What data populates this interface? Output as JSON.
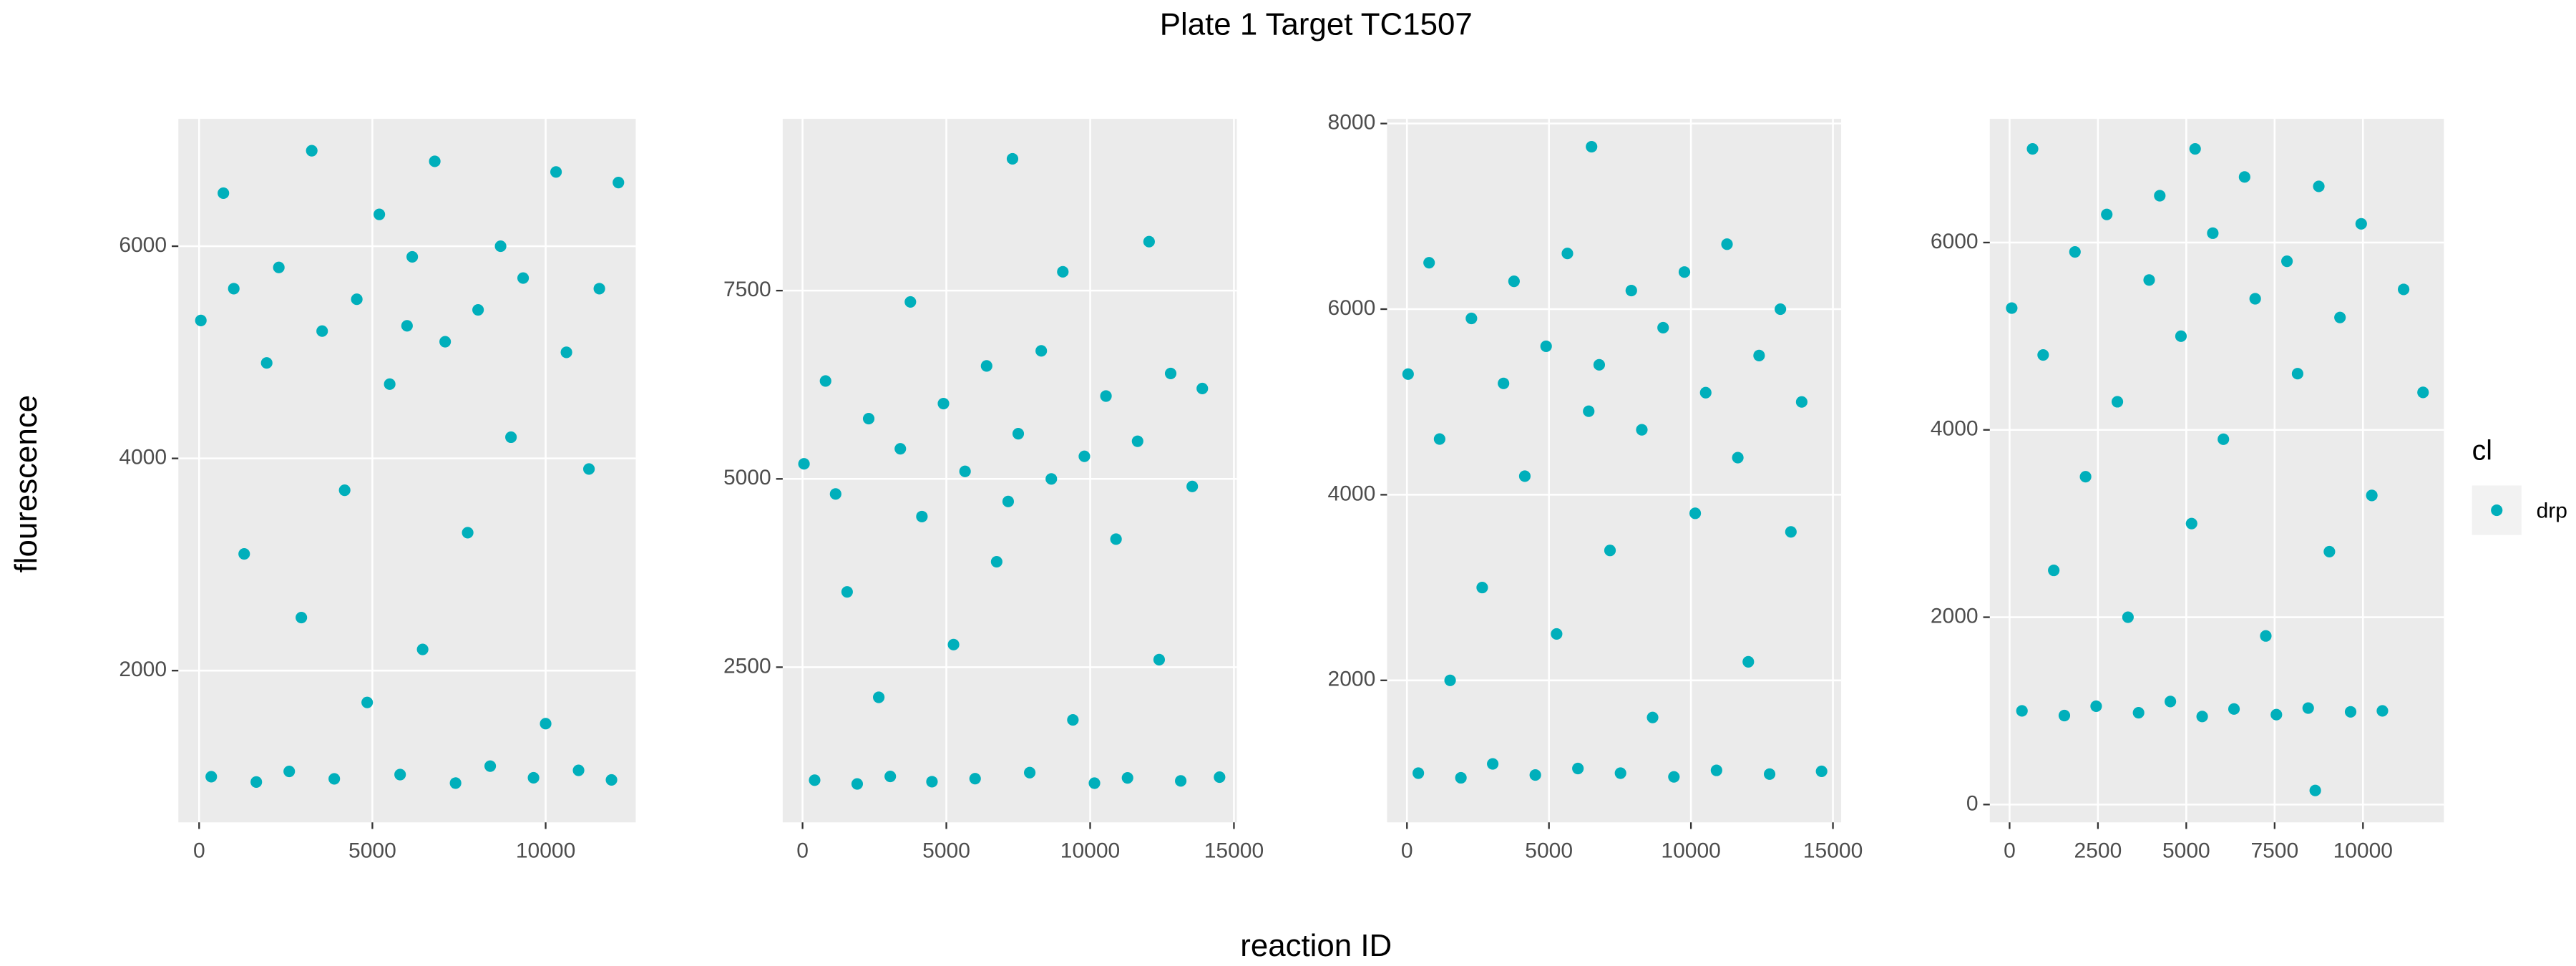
{
  "title": "Plate 1 Target TC1507",
  "x_label": "reaction ID",
  "y_label": "flourescence",
  "legend_title": "cl",
  "chart_data": [
    {
      "type": "scatter",
      "xlim": [
        -600,
        12600
      ],
      "ylim": [
        570,
        7200
      ],
      "xticks": [
        0,
        5000,
        10000
      ],
      "yticks": [
        2000,
        4000,
        6000
      ],
      "series": [
        {
          "name": "drp",
          "color": "#00AFBB",
          "x": [
            50,
            350,
            700,
            1000,
            1300,
            1650,
            1950,
            2300,
            2600,
            2950,
            3250,
            3550,
            3900,
            4200,
            4550,
            4850,
            5200,
            5500,
            5800,
            6150,
            6450,
            6800,
            7100,
            7400,
            7750,
            8050,
            8400,
            8700,
            9000,
            9350,
            9650,
            10000,
            10300,
            10600,
            10950,
            11250,
            11550,
            11900,
            12100,
            6000
          ],
          "values": [
            5300,
            1000,
            6500,
            5600,
            3100,
            950,
            4900,
            5800,
            1050,
            2500,
            6900,
            5200,
            980,
            3700,
            5500,
            1700,
            6300,
            4700,
            1020,
            5900,
            2200,
            6800,
            5100,
            940,
            3300,
            5400,
            1100,
            6000,
            4200,
            5700,
            990,
            1500,
            6700,
            5000,
            1060,
            3900,
            5600,
            970,
            6600,
            5250
          ]
        }
      ]
    },
    {
      "type": "scatter",
      "xlim": [
        -690,
        15100
      ],
      "ylim": [
        440,
        9780
      ],
      "xticks": [
        0,
        5000,
        10000,
        15000
      ],
      "yticks": [
        2500,
        5000,
        7500
      ],
      "series": [
        {
          "name": "drp",
          "color": "#00AFBB",
          "x": [
            50,
            420,
            800,
            1150,
            1550,
            1900,
            2300,
            2650,
            3050,
            3400,
            3750,
            4150,
            4500,
            4900,
            5250,
            5650,
            6000,
            6400,
            6750,
            7150,
            7300,
            7500,
            7900,
            8300,
            8650,
            9050,
            9400,
            9800,
            10150,
            10550,
            10900,
            11300,
            11650,
            12050,
            12400,
            12800,
            13150,
            13550,
            13900,
            14500
          ],
          "values": [
            5200,
            1000,
            6300,
            4800,
            3500,
            950,
            5800,
            2100,
            1050,
            5400,
            7350,
            4500,
            980,
            6000,
            2800,
            5100,
            1020,
            6500,
            3900,
            4700,
            9250,
            5600,
            1100,
            6700,
            5000,
            7750,
            1800,
            5300,
            960,
            6100,
            4200,
            1030,
            5500,
            8150,
            2600,
            6400,
            990,
            4900,
            6200,
            1040
          ]
        }
      ]
    },
    {
      "type": "scatter",
      "xlim": [
        -700,
        15290
      ],
      "ylim": [
        470,
        8050
      ],
      "xticks": [
        0,
        5000,
        10000,
        15000
      ],
      "yticks": [
        2000,
        4000,
        6000,
        8000
      ],
      "series": [
        {
          "name": "drp",
          "color": "#00AFBB",
          "x": [
            40,
            400,
            780,
            1150,
            1520,
            1900,
            2270,
            2650,
            3020,
            3400,
            3770,
            4150,
            4520,
            4900,
            5270,
            5650,
            6020,
            6400,
            6500,
            6770,
            7150,
            7520,
            7900,
            8270,
            8650,
            9020,
            9400,
            9770,
            10150,
            10520,
            10900,
            11270,
            11650,
            12020,
            12400,
            12770,
            13150,
            13520,
            13900,
            14600
          ],
          "values": [
            5300,
            1000,
            6500,
            4600,
            2000,
            950,
            5900,
            3000,
            1100,
            5200,
            6300,
            4200,
            980,
            5600,
            2500,
            6600,
            1050,
            4900,
            7750,
            5400,
            3400,
            1000,
            6200,
            4700,
            1600,
            5800,
            960,
            6400,
            3800,
            5100,
            1030,
            6700,
            4400,
            2200,
            5500,
            990,
            6000,
            3600,
            5000,
            1020
          ]
        }
      ]
    },
    {
      "type": "scatter",
      "xlim": [
        -560,
        12290
      ],
      "ylim": [
        -190,
        7320
      ],
      "xticks": [
        0,
        2500,
        5000,
        7500,
        10000
      ],
      "yticks": [
        0,
        2000,
        4000,
        6000
      ],
      "series": [
        {
          "name": "drp",
          "color": "#00AFBB",
          "x": [
            60,
            350,
            650,
            950,
            1250,
            1550,
            1850,
            2150,
            2450,
            2750,
            3050,
            3350,
            3650,
            3950,
            4250,
            4550,
            4850,
            5150,
            5250,
            5450,
            5750,
            6050,
            6350,
            6650,
            6950,
            7250,
            7550,
            7850,
            8150,
            8450,
            8650,
            8750,
            9050,
            9350,
            9650,
            9950,
            10250,
            10550,
            11150,
            11700
          ],
          "values": [
            5300,
            1000,
            7000,
            4800,
            2500,
            950,
            5900,
            3500,
            1050,
            6300,
            4300,
            2000,
            980,
            5600,
            6500,
            1100,
            5000,
            3000,
            7000,
            940,
            6100,
            3900,
            1020,
            6700,
            5400,
            1800,
            960,
            5800,
            4600,
            1030,
            150,
            6600,
            2700,
            5200,
            990,
            6200,
            3300,
            1000,
            5500,
            4400
          ]
        }
      ]
    }
  ]
}
